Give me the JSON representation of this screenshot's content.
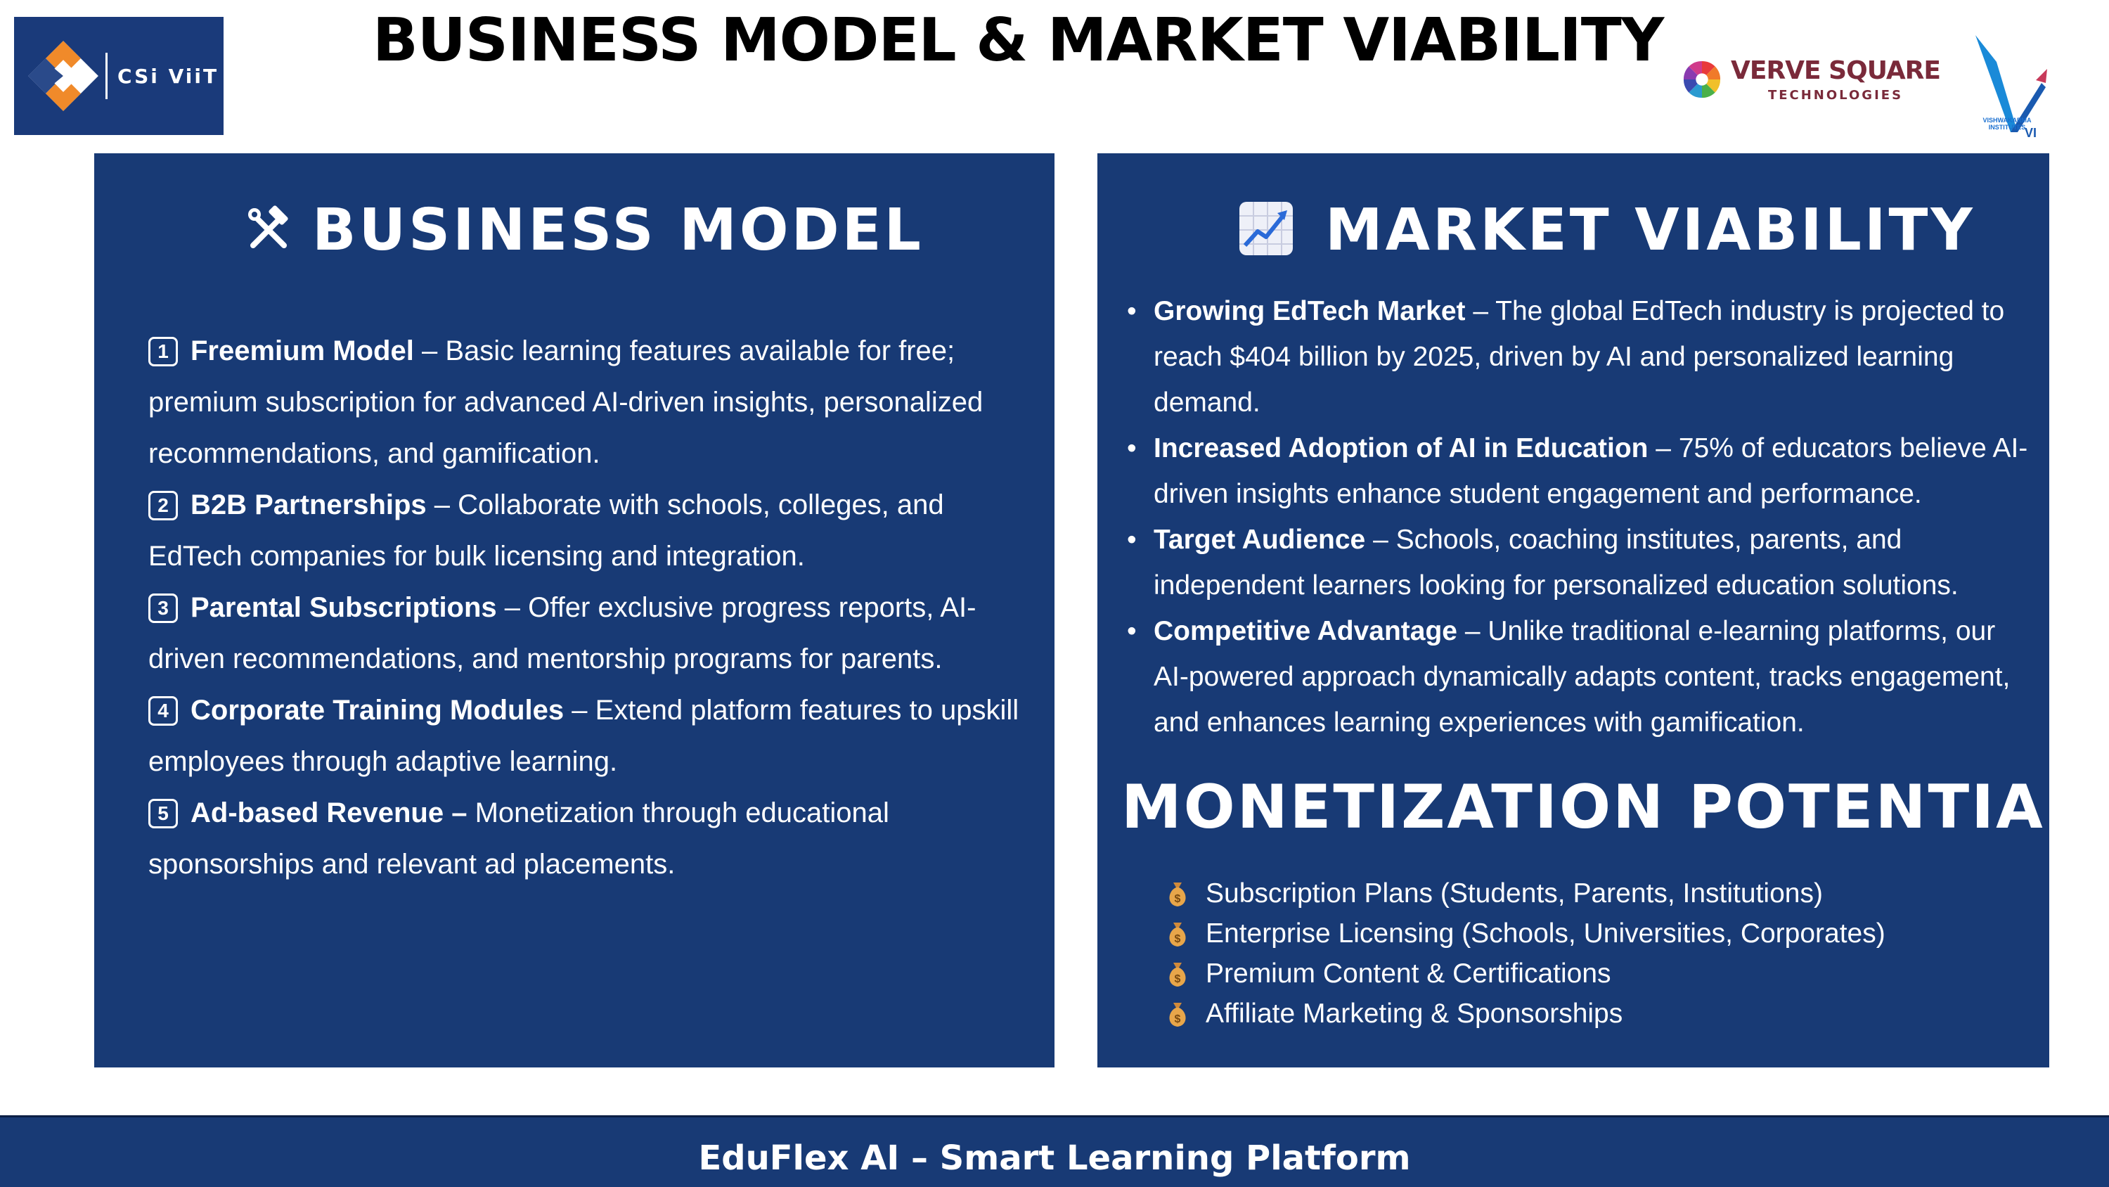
{
  "header": {
    "title": "BUSINESS MODEL & MARKET VIABILITY",
    "logo_left_text": "CSi ViiT",
    "logo_verve_name": "VERVE SQUARE",
    "logo_verve_sub": "TECHNOLOGIES",
    "logo_vi_caption": "VISHWAKARMA INSTITUTES",
    "logo_vi_mark": "VI"
  },
  "business_model": {
    "heading": "BUSINESS MODEL",
    "heading_icon": "tools-icon",
    "items": [
      {
        "num": "1",
        "title": "Freemium Model",
        "text": " – Basic learning features available for free; premium subscription for advanced AI-driven insights, personalized recommendations, and gamification."
      },
      {
        "num": "2",
        "title": "B2B Partnerships",
        "text": " – Collaborate with schools, colleges, and EdTech companies for bulk licensing and integration."
      },
      {
        "num": "3",
        "title": "Parental Subscriptions",
        "text": " – Offer exclusive progress reports, AI-driven recommendations, and mentorship programs for parents."
      },
      {
        "num": "4",
        "title": "Corporate Training Modules",
        "text": " – Extend platform features to upskill employees through adaptive learning."
      },
      {
        "num": "5",
        "title": "Ad-based Revenue –",
        "text": " Monetization through educational sponsorships and relevant ad placements."
      }
    ]
  },
  "market_viability": {
    "heading": "MARKET VIABILITY",
    "heading_icon": "chart-increasing-icon",
    "bullet": "•",
    "items": [
      {
        "title": "Growing EdTech Market",
        "text": " – The global EdTech industry is projected to reach $404 billion by 2025, driven by AI and personalized learning demand."
      },
      {
        "title": "Increased Adoption of AI in Education",
        "text": " – 75% of educators believe AI-driven insights enhance student engagement and performance."
      },
      {
        "title": "Target Audience",
        "text": " – Schools, coaching institutes, parents, and independent learners looking for personalized education solutions."
      },
      {
        "title": "Competitive Advantage",
        "text": " – Unlike traditional e-learning platforms, our AI-powered approach dynamically adapts content, tracks engagement, and enhances learning experiences with gamification."
      }
    ]
  },
  "monetization": {
    "heading": "MONETIZATION POTENTIAL",
    "item_icon": "money-bag-icon",
    "items": [
      "Subscription Plans (Students, Parents, Institutions)",
      "Enterprise Licensing (Schools, Universities, Corporates)",
      "Premium Content & Certifications",
      "Affiliate Marketing & Sponsorships"
    ]
  },
  "footer": {
    "text": "EduFlex AI – Smart Learning Platform"
  },
  "colors": {
    "panel": "#183a75",
    "title": "#000000",
    "text": "#ffffff",
    "money_bag": "#e8a64a"
  }
}
